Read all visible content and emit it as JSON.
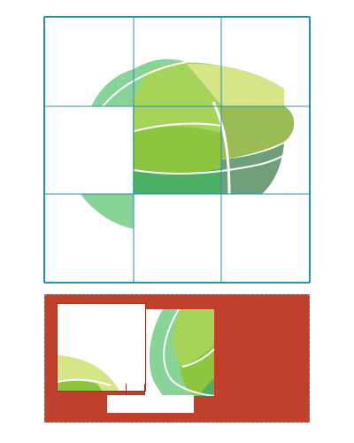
{
  "game": {
    "type": "sliding-jigsaw-puzzle",
    "grid": {
      "rows": 3,
      "cols": 3
    },
    "colors": {
      "board_border": "#2b8fb5",
      "grid_line": "#2b8fb5",
      "tray_background": "#c0402b",
      "tray_border": "#8a8a8a",
      "leaf_light": "#d4e685",
      "leaf_mid": "#a6d45a",
      "leaf_green": "#8cc63f",
      "leaf_olive": "#9bbb55",
      "leaf_mint": "#88d498",
      "leaf_dark": "#4caf63",
      "leaf_gray": "#6f9f78",
      "highlight": "#ffffff"
    }
  },
  "tray": {
    "piece_count": 4
  }
}
